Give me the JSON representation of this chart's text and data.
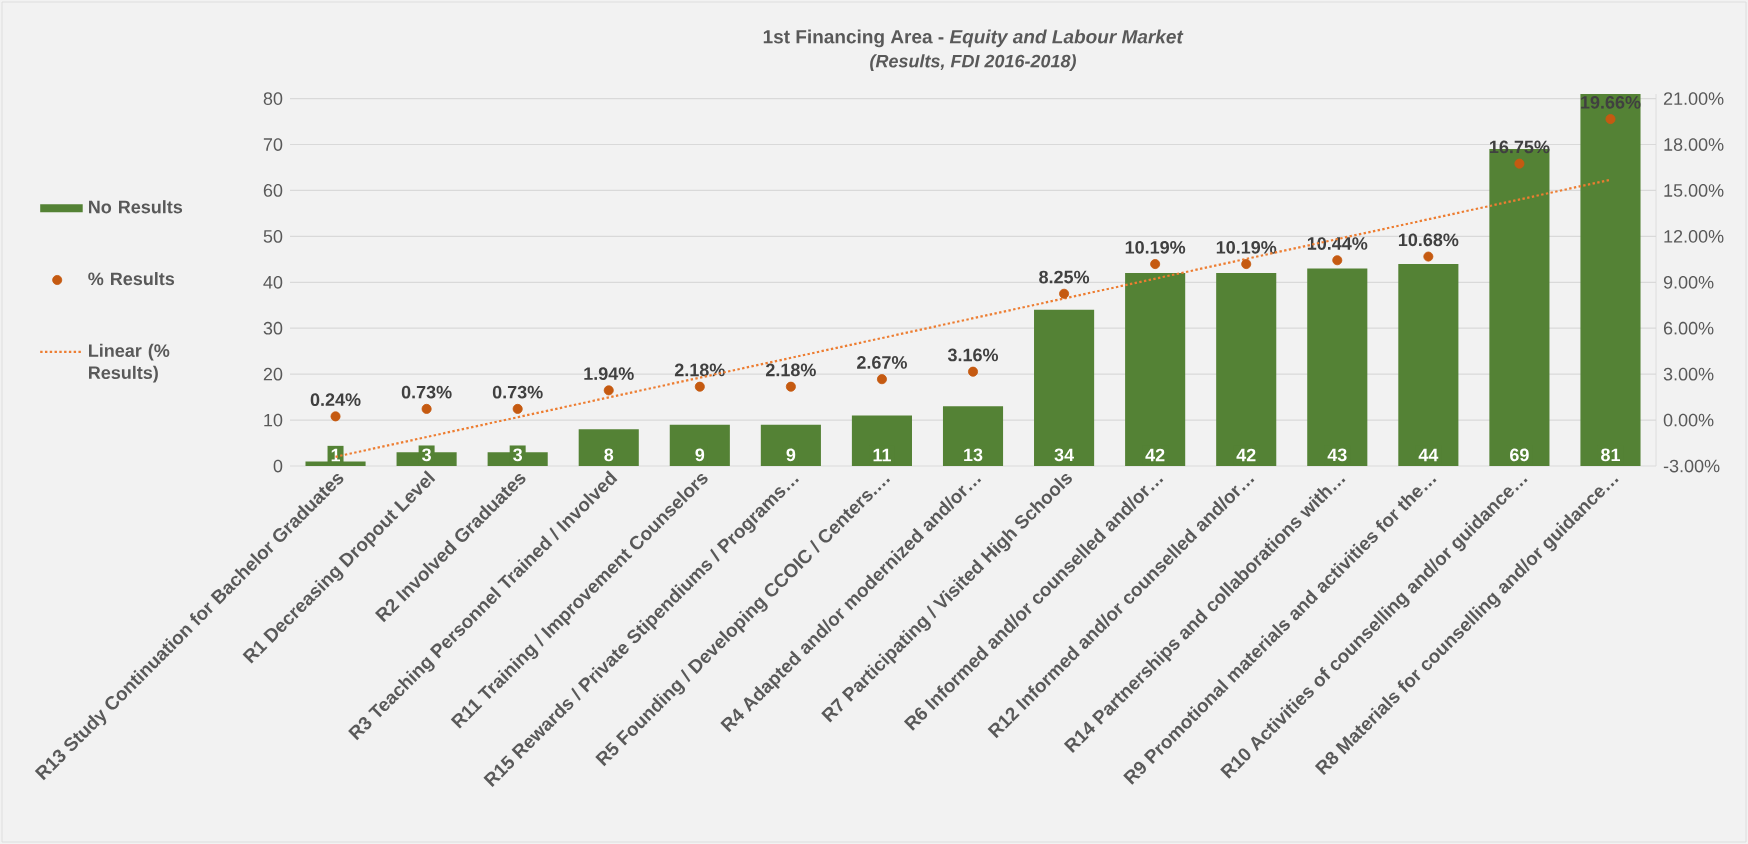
{
  "chart_data": {
    "type": "bar",
    "title": "1st Financing Area - *Equity and Labour Market*",
    "subtitle": "(Results, FDI 2016-2018)",
    "categories": [
      "R13 Study Continuation for Bachelor Graduates",
      "R1 Decreasing Dropout Level",
      "R2 Involved Graduates",
      "R3 Teaching Personnel Trained / Involved",
      "R11 Training / Improvement Counselors",
      "R15 Rewards / Private Stipendiums / Programs…",
      "R5 Founding / Developing CCOIC / Centers.…",
      "R4 Adapted and/or modernized and/or…",
      "R7 Participating / Visited High Schools",
      "R6  Informed and/or counselled and/or…",
      "R12 Informed and/or counselled and/or…",
      "R14 Partnerships and collaborations with…",
      "R9   Promotional materials and activities for the…",
      "R10 Activities of counselling and/or guidance…",
      "R8 Materials for counselling and/or guidance…"
    ],
    "series": [
      {
        "name": "No Results",
        "color": "#548235",
        "values": [
          1,
          3,
          3,
          8,
          9,
          9,
          11,
          13,
          34,
          42,
          42,
          43,
          44,
          69,
          81
        ],
        "value_labels": [
          "1",
          "3",
          "3",
          "8",
          "9",
          "9",
          "11",
          "13",
          "34",
          "42",
          "42",
          "43",
          "44",
          "69",
          "81"
        ]
      },
      {
        "name": "% Results",
        "type": "scatter",
        "axis": "y2",
        "marker": "circle",
        "color": "#c55a11",
        "values": [
          0.24,
          0.73,
          0.73,
          1.94,
          2.18,
          2.18,
          2.67,
          3.16,
          8.25,
          10.19,
          10.19,
          10.44,
          10.68,
          16.75,
          19.66
        ],
        "value_labels": [
          "0.24%",
          "0.73%",
          "0.73%",
          "1.94%",
          "2.18%",
          "2.18%",
          "2.67%",
          "3.16%",
          "8.25%",
          "10.19%",
          "10.19%",
          "10.44%",
          "10.68%",
          "16.75%",
          "19.66%"
        ]
      },
      {
        "name": "Linear (% Results)",
        "type": "line",
        "axis": "y2",
        "line_style": "dotted",
        "color": "#ed7d31",
        "x": [
          "R13 Study Continuation for Bachelor Graduates",
          "R8 Materials for counselling and/or guidance…"
        ],
        "values": [
          -2.4,
          15.7
        ]
      }
    ],
    "ylim": [
      0,
      81
    ],
    "yticks": [
      0,
      10,
      20,
      30,
      40,
      50,
      60,
      70,
      80
    ],
    "y2lim": [
      -3,
      21.3
    ],
    "y2ticks": [
      {
        "value": -3,
        "label": "-3.00%"
      },
      {
        "value": 0,
        "label": "0.00%"
      },
      {
        "value": 3,
        "label": "3.00%"
      },
      {
        "value": 6,
        "label": "6.00%"
      },
      {
        "value": 9,
        "label": "9.00%"
      },
      {
        "value": 12,
        "label": "12.00%"
      },
      {
        "value": 15,
        "label": "15.00%"
      },
      {
        "value": 18,
        "label": "18.00%"
      },
      {
        "value": 21,
        "label": "21.00%"
      }
    ],
    "grid": "y",
    "legend": "left"
  }
}
